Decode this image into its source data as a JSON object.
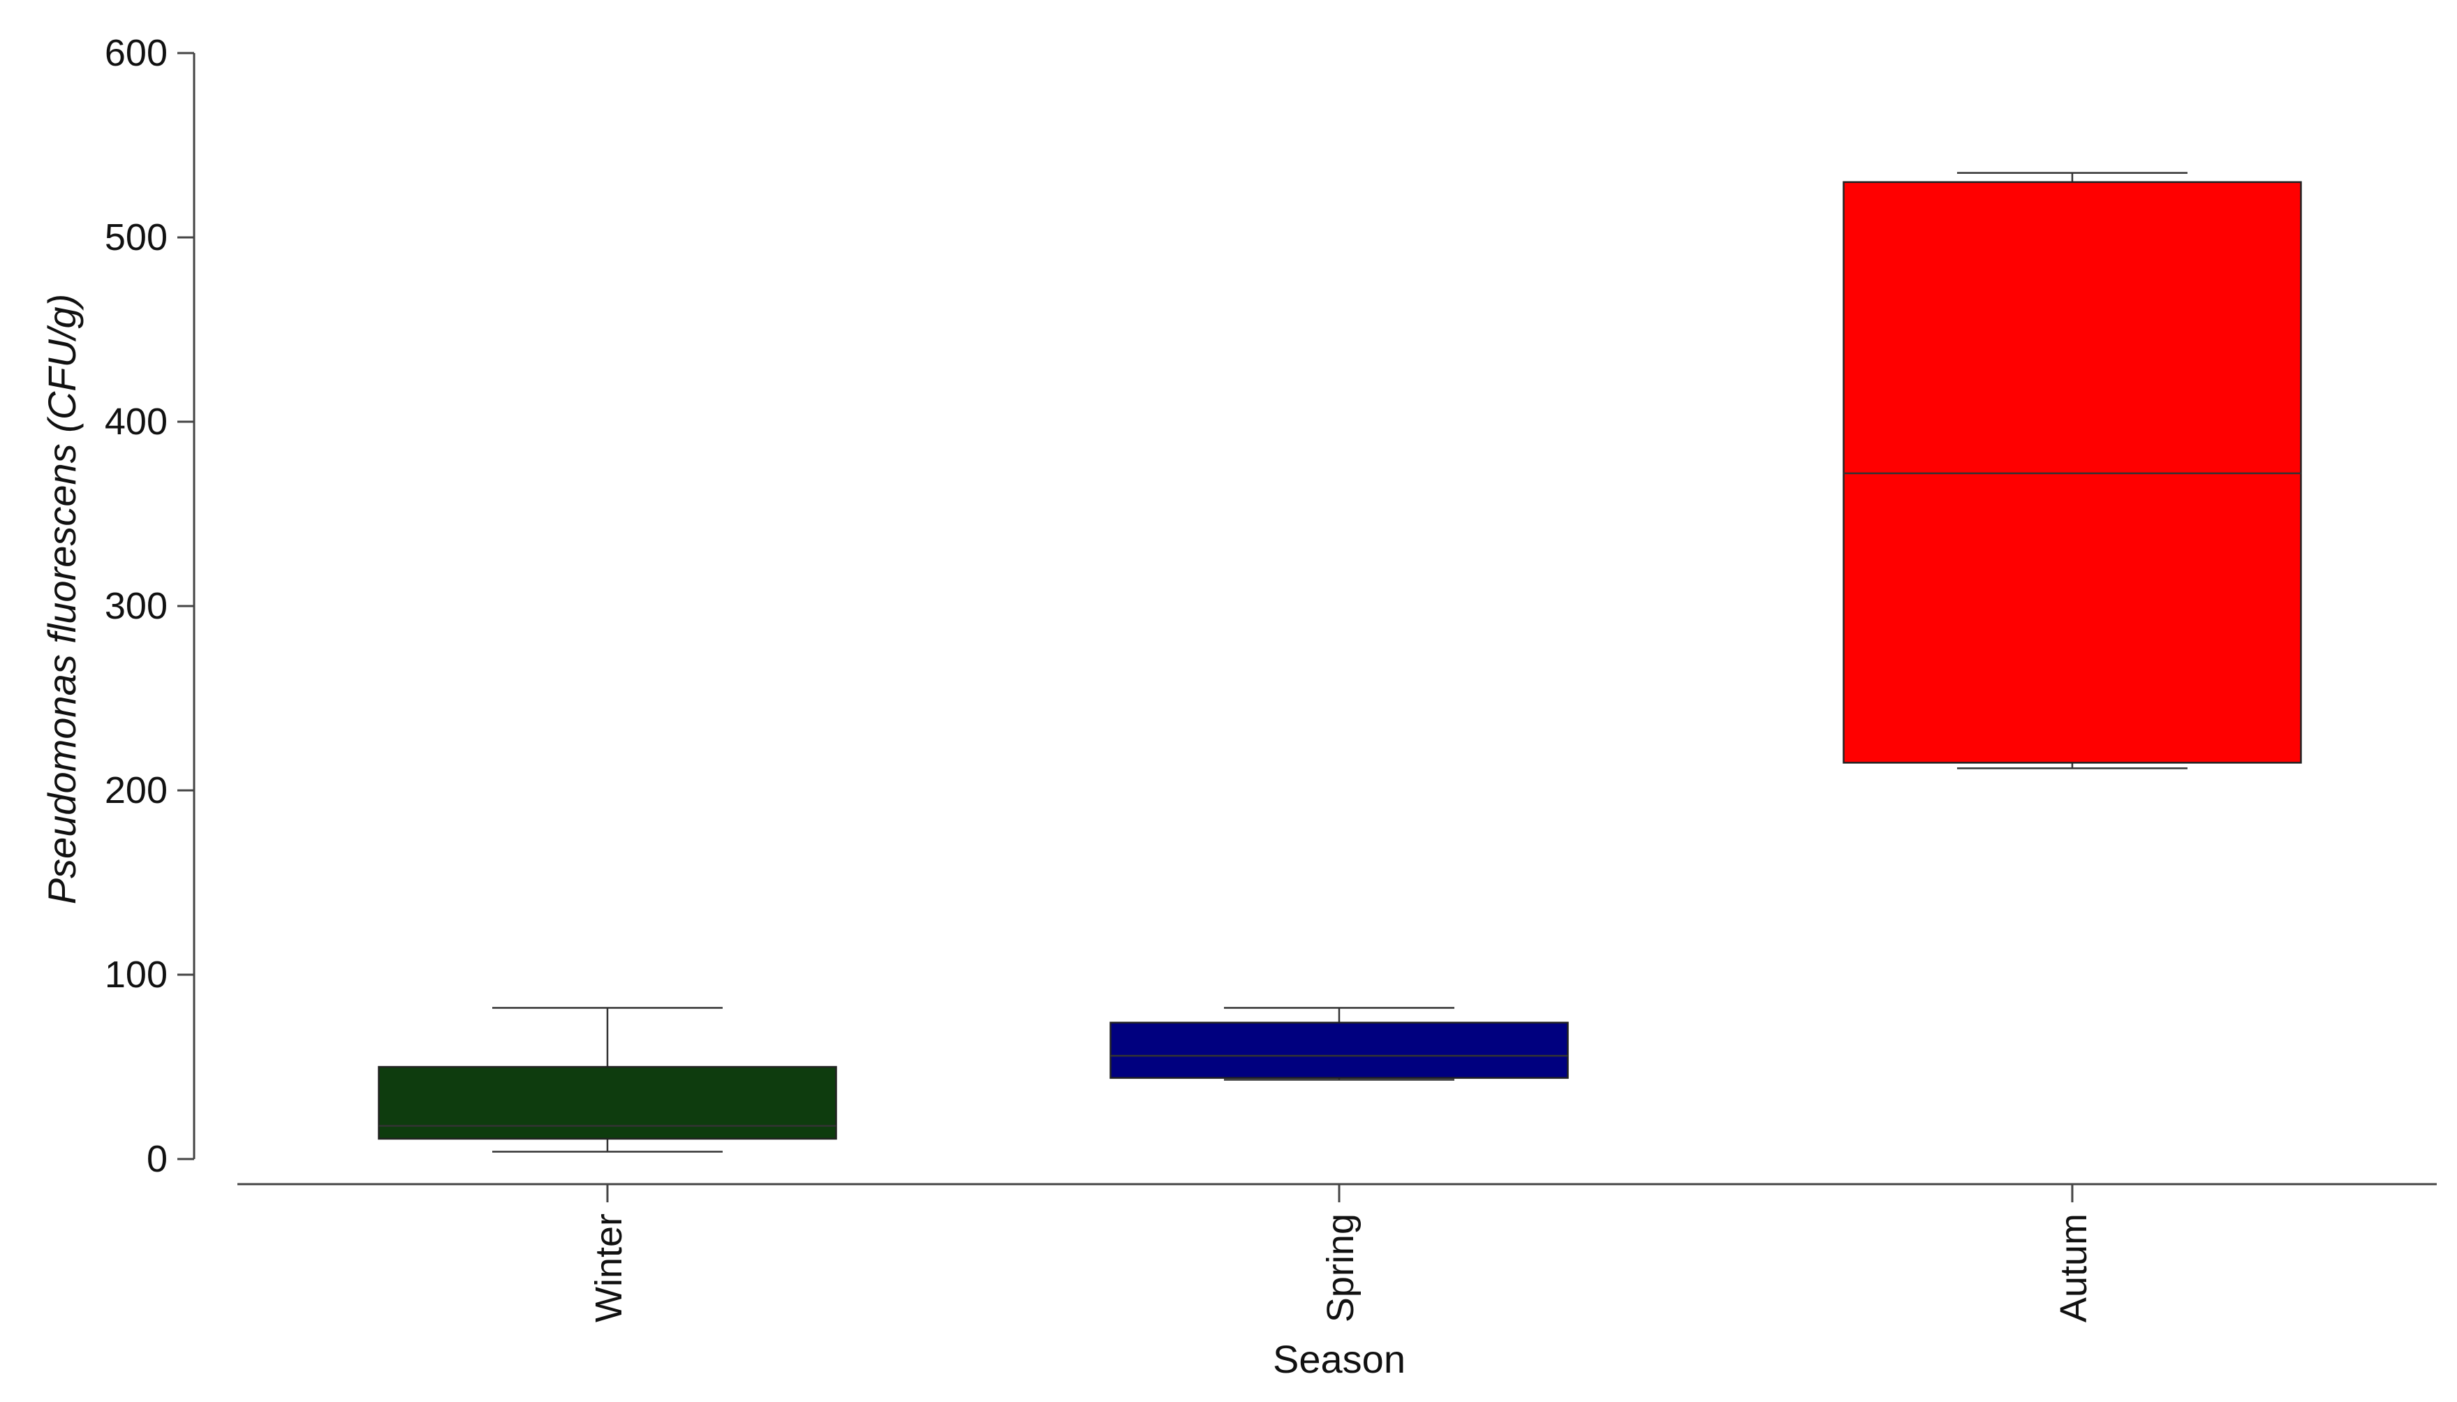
{
  "chart_data": {
    "type": "box",
    "xlabel": "Season",
    "ylabel": "Pseudomonas fluorescens (CFU/g)",
    "ylim": [
      0,
      600
    ],
    "yticks": [
      0,
      100,
      200,
      300,
      400,
      500,
      600
    ],
    "categories": [
      "Winter",
      "Spring",
      "Autum"
    ],
    "boxes": [
      {
        "category": "Winter",
        "min": 4,
        "q1": 11,
        "median": 18,
        "q3": 50,
        "max": 82,
        "color": "#0e3c0e"
      },
      {
        "category": "Spring",
        "min": 43,
        "q1": 44,
        "median": 56,
        "q3": 74,
        "max": 82,
        "color": "#00007f"
      },
      {
        "category": "Autum",
        "min": 212,
        "q1": 215,
        "median": 372,
        "q3": 530,
        "max": 535,
        "color": "#ff0000"
      }
    ],
    "grid": false,
    "legend": "none"
  }
}
